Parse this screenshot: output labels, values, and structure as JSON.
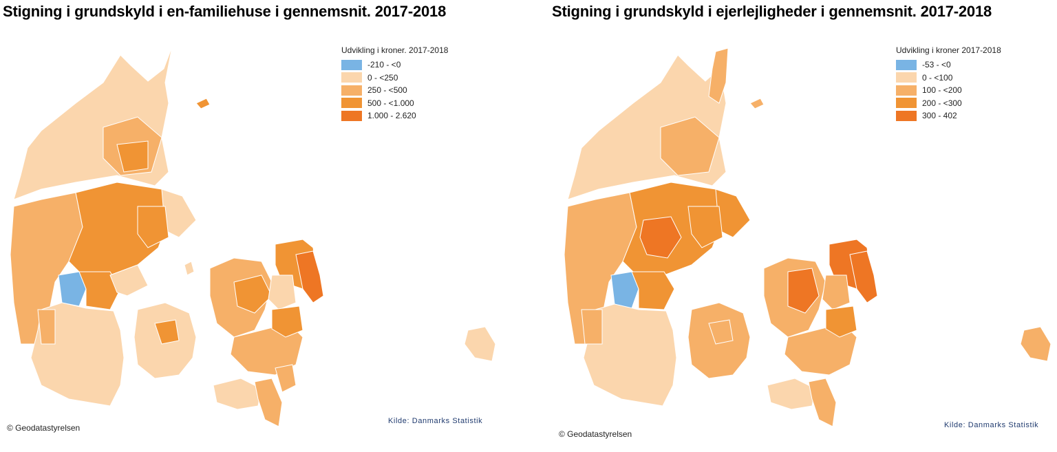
{
  "maps": {
    "left": {
      "title": "Stigning i grundskyld i en-familiehuse i gennemsnit. 2017-2018",
      "legend_title": "Udvikling i kroner. 2017-2018",
      "legend": [
        {
          "label": "-210 - <0",
          "color": "#79b4e4"
        },
        {
          "label": "0 - <250",
          "color": "#fbd6ad"
        },
        {
          "label": "250 - <500",
          "color": "#f6b068"
        },
        {
          "label": "500 - <1.000",
          "color": "#f09434"
        },
        {
          "label": "1.000 - 2.620",
          "color": "#ee7624"
        }
      ],
      "copyright": "© Geodatastyrelsen",
      "source": "Kilde: Danmarks Statistik"
    },
    "right": {
      "title": "Stigning i grundskyld i ejerlejligheder i gennemsnit. 2017-2018",
      "legend_title": "Udvikling i kroner 2017-2018",
      "legend": [
        {
          "label": "-53 - <0",
          "color": "#79b4e4"
        },
        {
          "label": "0 - <100",
          "color": "#fbd6ad"
        },
        {
          "label": "100 - <200",
          "color": "#f6b068"
        },
        {
          "label": "200 - <300",
          "color": "#f09434"
        },
        {
          "label": "300 - 402",
          "color": "#ee7624"
        }
      ],
      "copyright": "© Geodatastyrelsen",
      "source": "Kilde: Danmarks Statistik"
    }
  }
}
